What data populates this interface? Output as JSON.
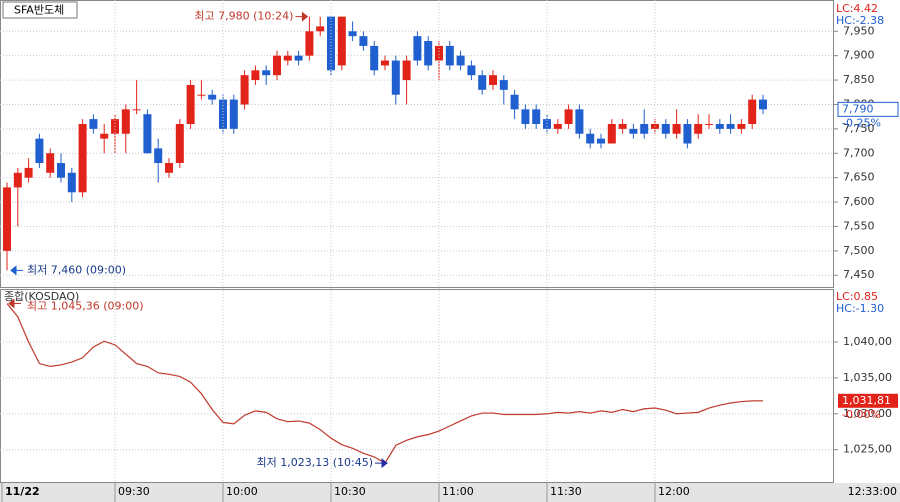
{
  "chart_data": [
    {
      "type": "candlestick",
      "title": "SFA반도체",
      "categories": [
        "11/22",
        null,
        null,
        null,
        null,
        null,
        null,
        null,
        null,
        null,
        "09:30",
        null,
        null,
        null,
        null,
        null,
        null,
        null,
        null,
        null,
        "10:00",
        null,
        null,
        null,
        null,
        null,
        null,
        null,
        null,
        null,
        "10:30",
        null,
        null,
        null,
        null,
        null,
        null,
        null,
        null,
        null,
        "11:00",
        null,
        null,
        null,
        null,
        null,
        null,
        null,
        null,
        null,
        "11:30",
        null,
        null,
        null,
        null,
        null,
        null,
        null,
        null,
        null,
        "12:00",
        null,
        null,
        null,
        null,
        null,
        null,
        null,
        null,
        null,
        null
      ],
      "open": [
        7500,
        7630,
        7650,
        7730,
        7660,
        7680,
        7660,
        7620,
        7770,
        7730,
        7740,
        7740,
        7790,
        7780,
        7710,
        7660,
        7680,
        7760,
        7820,
        7820,
        7810,
        7810,
        7800,
        7850,
        7870,
        7860,
        7890,
        7900,
        7900,
        7950,
        7980,
        7880,
        7950,
        7940,
        7920,
        7880,
        7890,
        7850,
        7940,
        7930,
        7890,
        7920,
        7900,
        7880,
        7860,
        7840,
        7850,
        7820,
        7790,
        7790,
        7770,
        7750,
        7760,
        7790,
        7740,
        7730,
        7720,
        7750,
        7750,
        7760,
        7750,
        7760,
        7740,
        7760,
        7740,
        7760,
        7760,
        7760,
        7750,
        7760,
        7810
      ],
      "high": [
        7640,
        7670,
        7690,
        7740,
        7710,
        7700,
        7670,
        7770,
        7780,
        7760,
        7780,
        7800,
        7850,
        7790,
        7730,
        7690,
        7770,
        7850,
        7850,
        7830,
        7820,
        7820,
        7870,
        7880,
        7880,
        7910,
        7910,
        7910,
        7980,
        7980,
        7980,
        7980,
        7970,
        7950,
        7930,
        7900,
        7900,
        7900,
        7950,
        7940,
        7930,
        7930,
        7910,
        7890,
        7870,
        7870,
        7860,
        7830,
        7800,
        7800,
        7780,
        7770,
        7800,
        7800,
        7750,
        7740,
        7770,
        7770,
        7760,
        7790,
        7770,
        7770,
        7790,
        7770,
        7780,
        7780,
        7770,
        7780,
        7770,
        7820,
        7820
      ],
      "low": [
        7460,
        7550,
        7640,
        7670,
        7650,
        7640,
        7600,
        7610,
        7740,
        7700,
        7700,
        7700,
        7780,
        7700,
        7640,
        7650,
        7670,
        7750,
        7810,
        7800,
        7740,
        7740,
        7790,
        7840,
        7840,
        7850,
        7880,
        7880,
        7890,
        7940,
        7860,
        7870,
        7930,
        7910,
        7860,
        7870,
        7800,
        7800,
        7880,
        7870,
        7850,
        7870,
        7870,
        7850,
        7820,
        7830,
        7800,
        7770,
        7750,
        7750,
        7740,
        7740,
        7750,
        7730,
        7710,
        7710,
        7720,
        7740,
        7730,
        7730,
        7740,
        7730,
        7730,
        7710,
        7730,
        7750,
        7740,
        7740,
        7740,
        7750,
        7780
      ],
      "close": [
        7630,
        7660,
        7670,
        7680,
        7700,
        7650,
        7620,
        7760,
        7750,
        7740,
        7770,
        7790,
        7790,
        7700,
        7680,
        7680,
        7760,
        7840,
        7820,
        7810,
        7750,
        7750,
        7860,
        7870,
        7860,
        7900,
        7900,
        7890,
        7950,
        7960,
        7870,
        7980,
        7940,
        7920,
        7870,
        7890,
        7820,
        7890,
        7890,
        7880,
        7920,
        7880,
        7880,
        7860,
        7830,
        7860,
        7830,
        7790,
        7760,
        7760,
        7750,
        7760,
        7790,
        7740,
        7720,
        7720,
        7760,
        7760,
        7740,
        7740,
        7760,
        7740,
        7760,
        7720,
        7760,
        7760,
        7750,
        7750,
        7760,
        7810,
        7790
      ],
      "up_color": "#e2231a",
      "down_color": "#1f5fcf",
      "ylim": [
        7430,
        8010
      ],
      "yticks": [
        {
          "value": 7450,
          "label": "7,450"
        },
        {
          "value": 7500,
          "label": "7,500"
        },
        {
          "value": 7550,
          "label": "7,550"
        },
        {
          "value": 7600,
          "label": "7,600"
        },
        {
          "value": 7650,
          "label": "7,650"
        },
        {
          "value": 7700,
          "label": "7,700"
        },
        {
          "value": 7750,
          "label": "7,750"
        },
        {
          "value": 7800,
          "label": "7,800"
        },
        {
          "value": 7850,
          "label": "7,850"
        },
        {
          "value": 7900,
          "label": "7,900"
        },
        {
          "value": 7950,
          "label": "7,950"
        }
      ],
      "grid": true,
      "high_annotation": "최고 7,980 (10:24)",
      "low_annotation": "최저 7,460 (09:00)",
      "lc_label": "LC:4.42",
      "hc_label": "HC:-2.38",
      "last_price_label": "7,790",
      "change_label": "-0.25%"
    },
    {
      "type": "line",
      "title": "종합(KOSDAQ)",
      "series": [
        {
          "name": "종합(KOSDAQ)",
          "color": "#c0392b",
          "values": [
            1045.36,
            1043.5,
            1040.0,
            1037.0,
            1036.6,
            1036.8,
            1037.2,
            1037.8,
            1039.3,
            1040.1,
            1039.6,
            1038.3,
            1037.0,
            1036.6,
            1035.7,
            1035.5,
            1035.2,
            1034.4,
            1032.8,
            1030.6,
            1028.8,
            1028.6,
            1029.8,
            1030.4,
            1030.2,
            1029.3,
            1028.9,
            1029.0,
            1028.7,
            1027.8,
            1026.6,
            1025.7,
            1025.2,
            1024.5,
            1024.0,
            1023.13,
            1025.6,
            1026.3,
            1026.8,
            1027.1,
            1027.6,
            1028.3,
            1029.0,
            1029.7,
            1030.1,
            1030.1,
            1029.9,
            1029.9,
            1029.9,
            1029.9,
            1030.0,
            1030.2,
            1030.1,
            1030.3,
            1030.1,
            1030.4,
            1030.2,
            1030.6,
            1030.3,
            1030.7,
            1030.8,
            1030.5,
            1030.0,
            1030.1,
            1030.2,
            1030.8,
            1031.2,
            1031.5,
            1031.7,
            1031.8,
            1031.81
          ]
        }
      ],
      "ylim": [
        1020.5,
        1047.1
      ],
      "yticks": [
        {
          "value": 1025,
          "label": "1,025,00"
        },
        {
          "value": 1030,
          "label": "1,030,00"
        },
        {
          "value": 1035,
          "label": "1,035,00"
        },
        {
          "value": 1040,
          "label": "1,040,00"
        }
      ],
      "grid": true,
      "high_annotation": "최고 1,045,36 (09:00)",
      "low_annotation": "최저 1,023,13 (10:45)",
      "lc_label": "LC:0.85",
      "hc_label": "HC:-1.30",
      "last_price_label": "1,031,81",
      "change_label": "-0.00%",
      "current_time": "12:33:00"
    }
  ]
}
